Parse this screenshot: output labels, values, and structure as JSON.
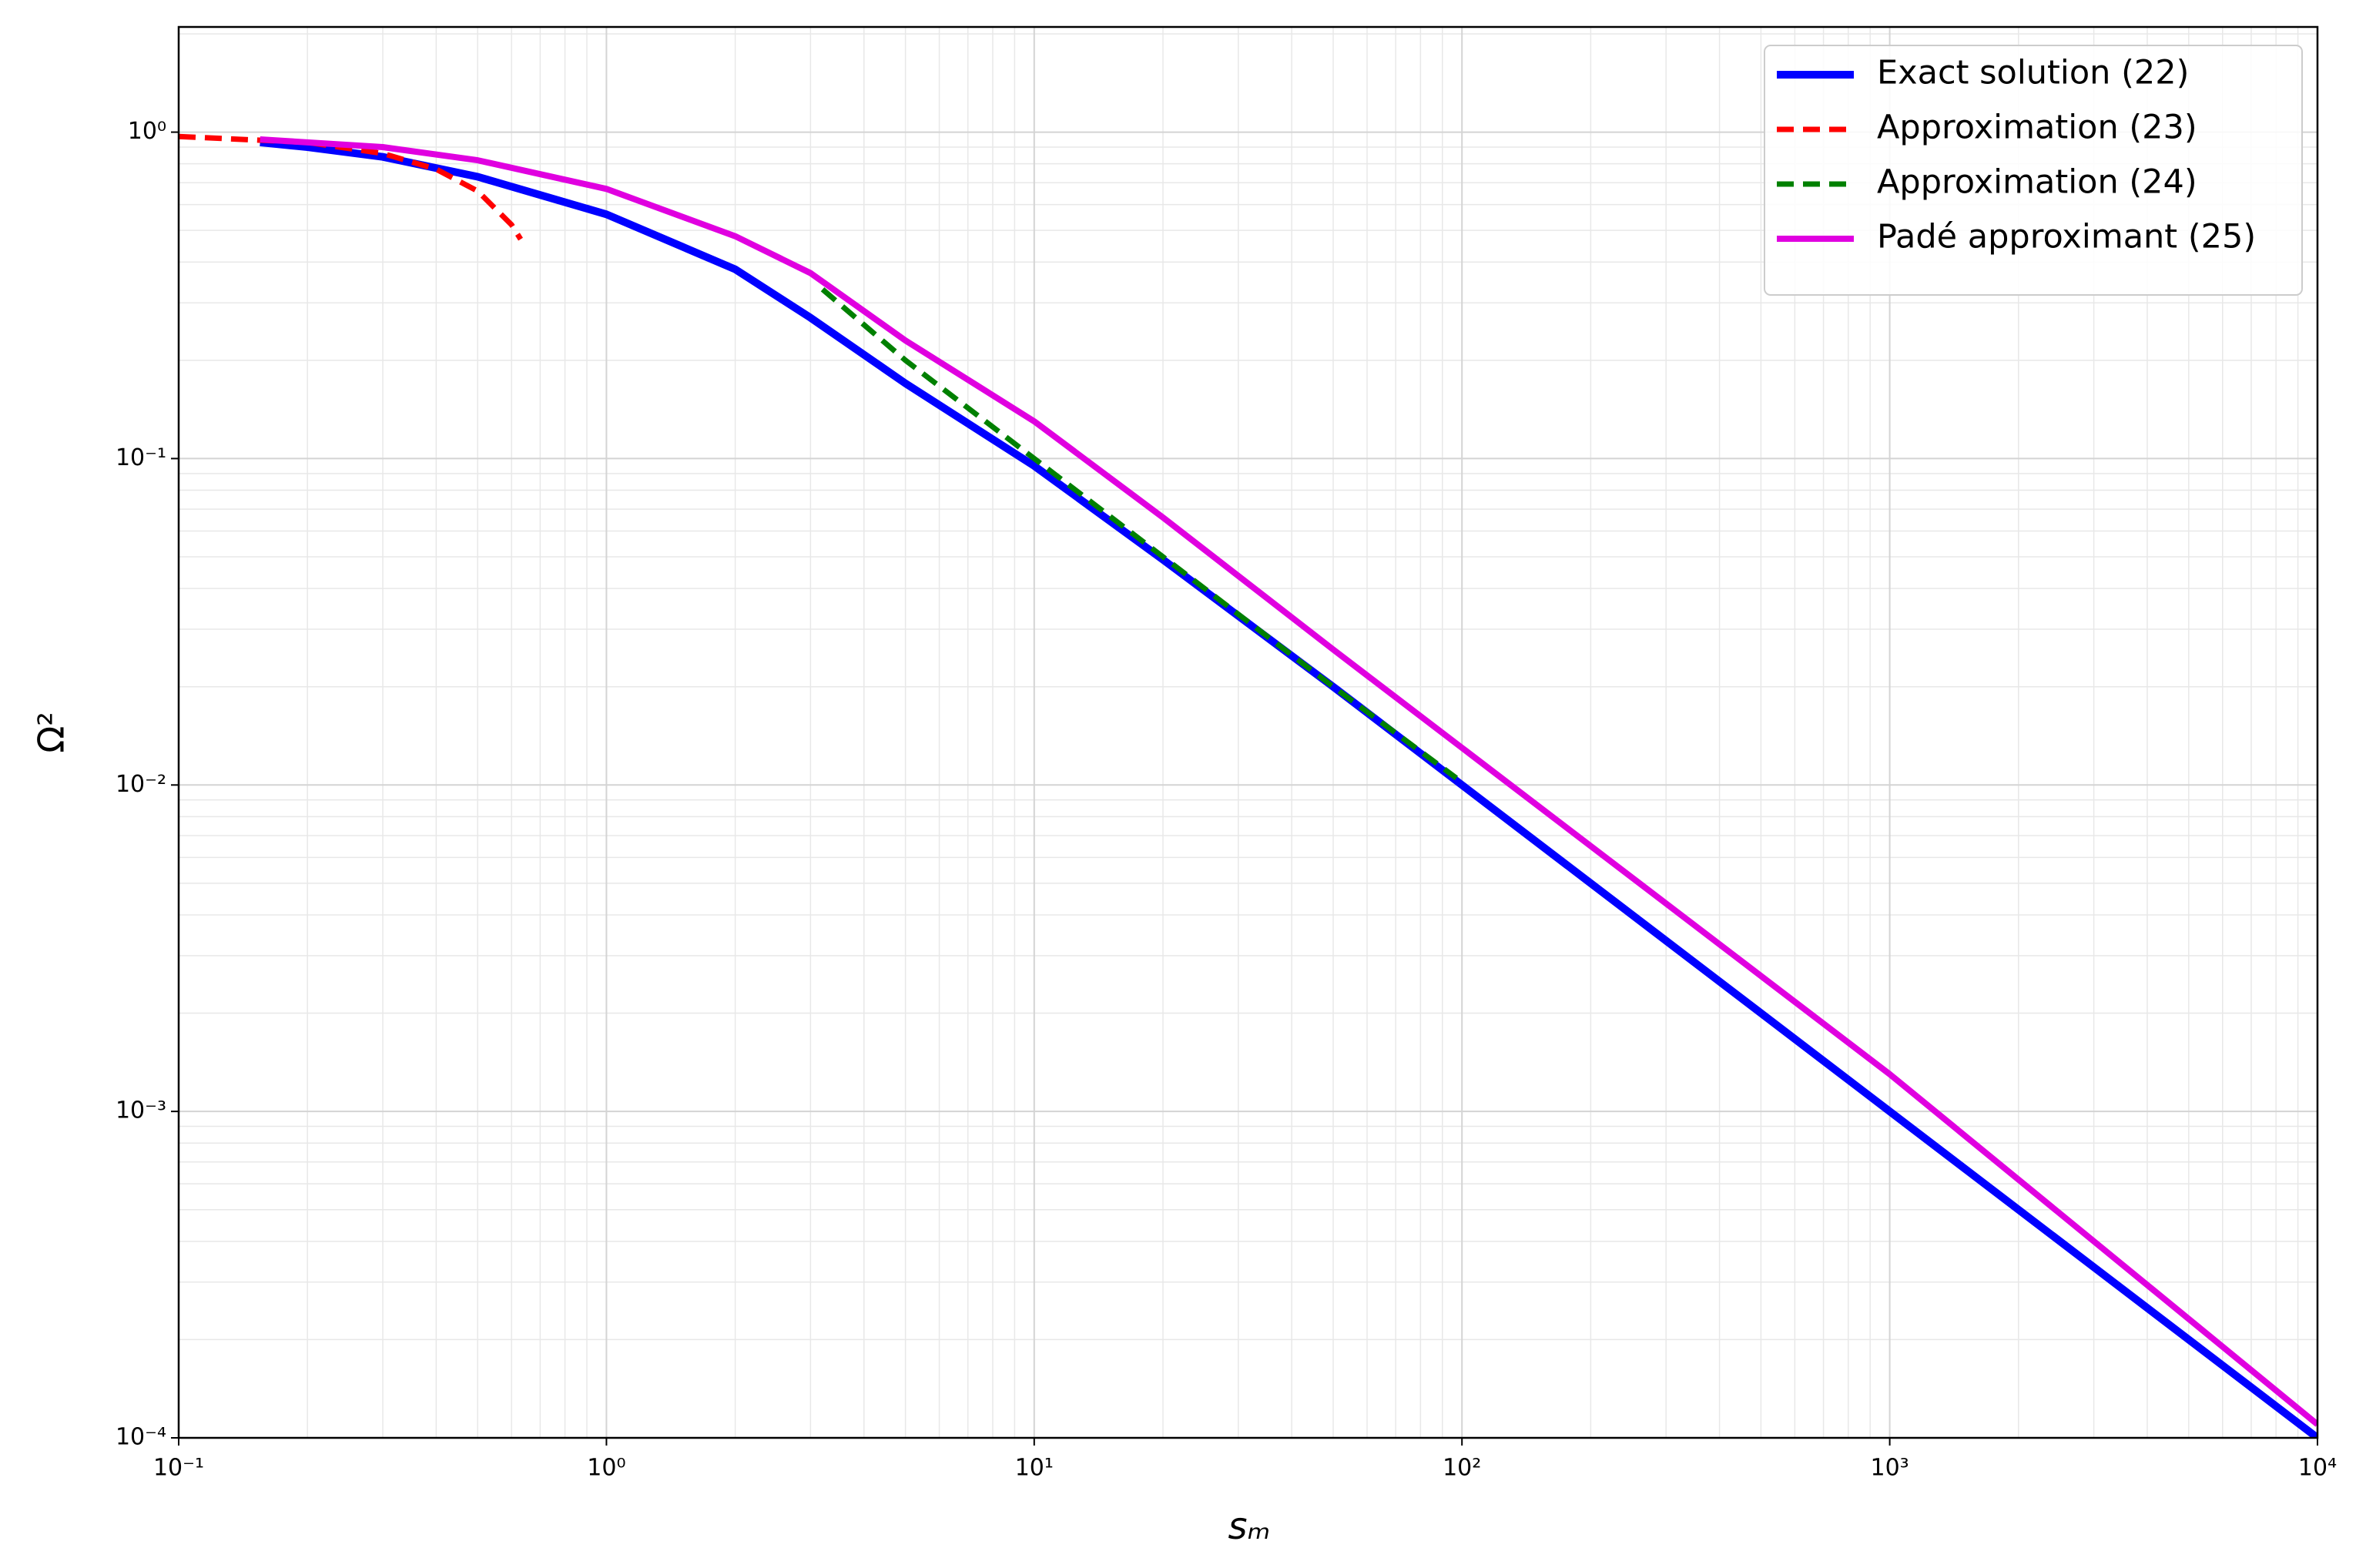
{
  "chart_data": {
    "type": "line",
    "xlabel": "sₘ",
    "ylabel": "Ω²",
    "xscale": "log",
    "yscale": "log",
    "grid": true,
    "legend": "upper right",
    "xlim": [
      0.1,
      10000
    ],
    "ylim": [
      0.0001,
      2.1
    ],
    "xticks": [
      {
        "value": 0.1,
        "label": "10⁻¹"
      },
      {
        "value": 1,
        "label": "10⁰"
      },
      {
        "value": 10,
        "label": "10¹"
      },
      {
        "value": 100,
        "label": "10²"
      },
      {
        "value": 1000,
        "label": "10³"
      },
      {
        "value": 10000,
        "label": "10⁴"
      }
    ],
    "yticks": [
      {
        "value": 0.0001,
        "label": "10⁻⁴"
      },
      {
        "value": 0.001,
        "label": "10⁻³"
      },
      {
        "value": 0.01,
        "label": "10⁻²"
      },
      {
        "value": 0.1,
        "label": "10⁻¹"
      },
      {
        "value": 1,
        "label": "10⁰"
      }
    ],
    "series": [
      {
        "name": "Exact solution (22)",
        "color": "#0000ff",
        "dash": false,
        "width": 10,
        "x": [
          0.155,
          0.2,
          0.3,
          0.5,
          1,
          2,
          3,
          5,
          10,
          20,
          50,
          100,
          1000,
          10000
        ],
        "values": [
          0.93,
          0.9,
          0.84,
          0.73,
          0.56,
          0.38,
          0.27,
          0.17,
          0.095,
          0.049,
          0.02,
          0.01,
          0.001,
          0.0001
        ]
      },
      {
        "name": "Approximation (23)",
        "color": "#ff0000",
        "dash": true,
        "width": 7,
        "x": [
          0.1,
          0.2,
          0.3,
          0.4,
          0.5,
          0.6,
          0.63
        ],
        "values": [
          0.97,
          0.93,
          0.86,
          0.77,
          0.66,
          0.52,
          0.47
        ]
      },
      {
        "name": "Approximation (24)",
        "color": "#008000",
        "dash": true,
        "width": 7,
        "x": [
          3.2,
          5,
          10,
          20,
          50,
          97
        ],
        "values": [
          0.33,
          0.2,
          0.1,
          0.05,
          0.02,
          0.0105
        ]
      },
      {
        "name": "Padé approximant (25)",
        "color": "#e000e0",
        "dash": false,
        "width": 8,
        "x": [
          0.155,
          0.3,
          0.5,
          1,
          2,
          3,
          5,
          10,
          20,
          50,
          100,
          1000,
          10000
        ],
        "values": [
          0.95,
          0.9,
          0.82,
          0.67,
          0.48,
          0.37,
          0.23,
          0.13,
          0.066,
          0.026,
          0.013,
          0.0013,
          0.00011
        ]
      }
    ]
  }
}
